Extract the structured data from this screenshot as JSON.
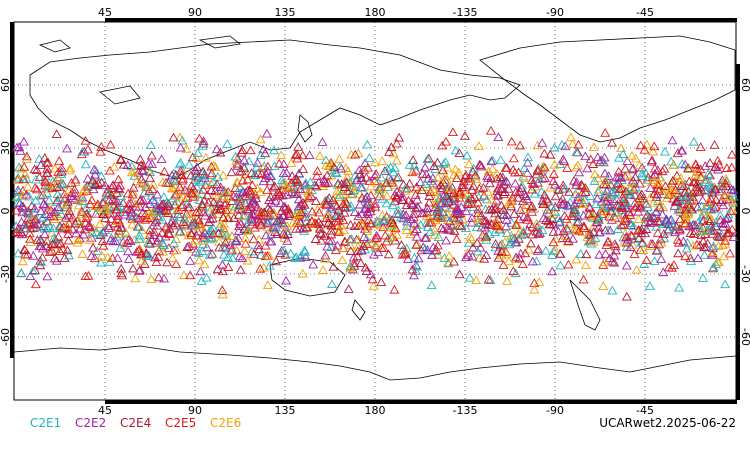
{
  "map": {
    "lon_labels_top": [
      "45",
      "90",
      "135",
      "180",
      "-135",
      "-90",
      "-45"
    ],
    "lon_labels_bottom": [
      "45",
      "90",
      "135",
      "180",
      "-135",
      "-90",
      "-45"
    ],
    "lat_labels_left": [
      "60",
      "30",
      "0",
      "-30",
      "-60"
    ],
    "lat_labels_right": [
      "60",
      "30",
      "0",
      "-30",
      "-60"
    ],
    "grid_color": "#000000",
    "coastline_color": "#000000"
  },
  "legend": {
    "items": [
      {
        "label": "C2E1",
        "color": "#1fb5c0"
      },
      {
        "label": "C2E2",
        "color": "#a020a8"
      },
      {
        "label": "C2E4",
        "color": "#b01830"
      },
      {
        "label": "C2E5",
        "color": "#e01818"
      },
      {
        "label": "C2E6",
        "color": "#f5a000"
      }
    ]
  },
  "footer": {
    "label": "UCARwet2.2025-06-22"
  }
}
